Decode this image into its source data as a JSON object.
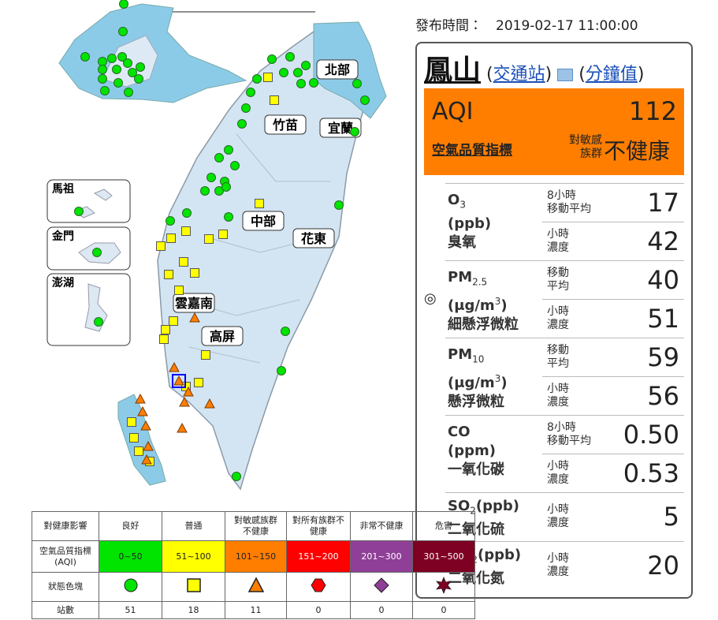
{
  "publish": {
    "label": "發布時間：",
    "time": "2019-02-17 11:00:00"
  },
  "map": {
    "regions": [
      "北部",
      "竹苗",
      "宜蘭",
      "中部",
      "花東",
      "雲嘉南",
      "高屏"
    ],
    "islands": [
      "馬祖",
      "金門",
      "澎湖"
    ]
  },
  "station": {
    "name": "鳳山",
    "type_link": {
      "before": "(",
      "text": "交通站",
      "after": ")"
    },
    "minute_link": {
      "before": "(",
      "text": "分鐘值",
      "after": ")"
    },
    "aqi_label": "AQI",
    "aqi": 112,
    "aqi_caption": "空氣品質指標",
    "group": [
      "對敏感",
      "族群"
    ],
    "status": "不健康"
  },
  "pollutants": [
    {
      "name": "O",
      "sub": "3",
      "unit": "(ppb)",
      "zh": "臭氧",
      "rows": [
        {
          "label": [
            "8小時",
            "移動平均"
          ],
          "value": 17
        },
        {
          "label": [
            "小時",
            "濃度"
          ],
          "value": 42
        }
      ]
    },
    {
      "marker": "◎",
      "name": "PM",
      "sub": "2.5",
      "unit": "(μg/m",
      "unit_sup": "3",
      "unit_close": ")",
      "zh": "細懸浮微粒",
      "rows": [
        {
          "label": [
            "移動",
            "平均"
          ],
          "value": 40
        },
        {
          "label": [
            "小時",
            "濃度"
          ],
          "value": 51
        }
      ]
    },
    {
      "name": "PM",
      "sub": "10",
      "unit": "(μg/m",
      "unit_sup": "3",
      "unit_close": ")",
      "zh": "懸浮微粒",
      "rows": [
        {
          "label": [
            "移動",
            "平均"
          ],
          "value": 59
        },
        {
          "label": [
            "小時",
            "濃度"
          ],
          "value": 56
        }
      ]
    },
    {
      "name": "CO",
      "unit": "(ppm)",
      "zh": "一氧化碳",
      "rows": [
        {
          "label": [
            "8小時",
            "移動平均"
          ],
          "value": "0.50"
        },
        {
          "label": [
            "小時",
            "濃度"
          ],
          "value": "0.53"
        }
      ]
    },
    {
      "name": "SO",
      "sub": "2",
      "unit": "(ppb)",
      "zh": "二氧化硫",
      "rows": [
        {
          "label": [
            "小時",
            "濃度"
          ],
          "value": 5
        }
      ]
    },
    {
      "name": "NO",
      "sub": "2",
      "unit": "(ppb)",
      "zh": "二氧化氮",
      "rows": [
        {
          "label": [
            "小時",
            "濃度"
          ],
          "value": 20
        }
      ]
    }
  ],
  "legend": {
    "header": [
      "對健康影響",
      "良好",
      "普通",
      "對敏感族群不健康",
      "對所有族群不健康",
      "非常不健康",
      "危害"
    ],
    "aqi_row": [
      "空氣品質指標(AQI)",
      "0~50",
      "51~100",
      "101~150",
      "151~200",
      "201~300",
      "301~500"
    ],
    "colors": [
      "#00e400",
      "#ffff00",
      "#ff7e00",
      "#ff0000",
      "#8f3f97",
      "#7e0023"
    ],
    "icon_label": "狀態色塊",
    "count_label": "站數",
    "counts": [
      51,
      18,
      11,
      0,
      0,
      0
    ]
  }
}
